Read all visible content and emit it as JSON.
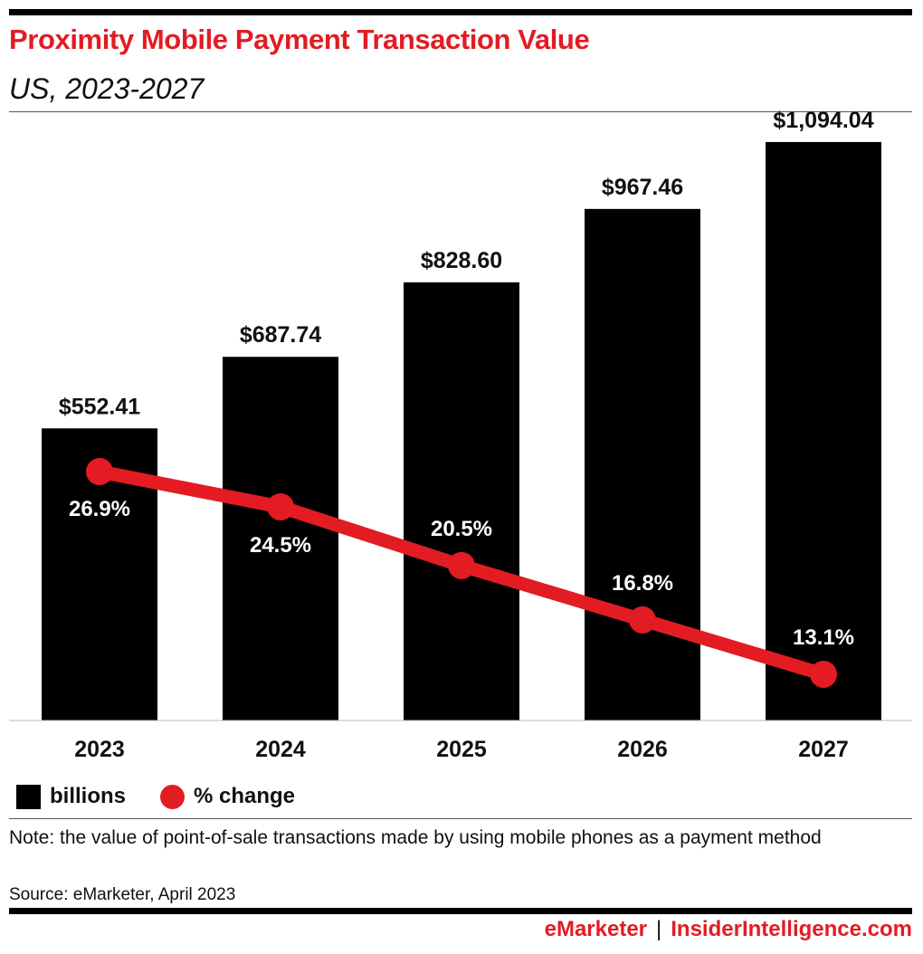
{
  "header": {
    "title": "Proximity Mobile Payment Transaction Value",
    "subtitle": "US, 2023-2027"
  },
  "chart_data": {
    "type": "bar",
    "title": "Proximity Mobile Payment Transaction Value",
    "subtitle": "US, 2023-2027",
    "categories": [
      "2023",
      "2024",
      "2025",
      "2026",
      "2027"
    ],
    "series": [
      {
        "name": "billions",
        "kind": "bar",
        "values": [
          552.41,
          687.74,
          828.6,
          967.46,
          1094.04
        ],
        "labels": [
          "$552.41",
          "$687.74",
          "$828.60",
          "$967.46",
          "$1,094.04"
        ],
        "color": "#000000"
      },
      {
        "name": "% change",
        "kind": "line",
        "values": [
          26.9,
          24.5,
          20.5,
          16.8,
          13.1
        ],
        "labels": [
          "26.9%",
          "24.5%",
          "20.5%",
          "16.8%",
          "13.1%"
        ],
        "color": "#e31b23"
      }
    ],
    "xlabel": "",
    "ylabel": "",
    "ylim": [
      0,
      1200
    ],
    "ylim_secondary": [
      0,
      35
    ],
    "grid": false,
    "legend": "bottom-left"
  },
  "legend": {
    "bar_label": "billions",
    "line_label": "% change"
  },
  "footnote": {
    "note": "Note: the value of point-of-sale transactions made by using mobile phones as a payment method",
    "source": "Source: eMarketer, April 2023"
  },
  "footer": {
    "brand": "eMarketer",
    "separator": "|",
    "site": "InsiderIntelligence.com"
  },
  "colors": {
    "accent": "#e31b23",
    "bar": "#000000"
  }
}
